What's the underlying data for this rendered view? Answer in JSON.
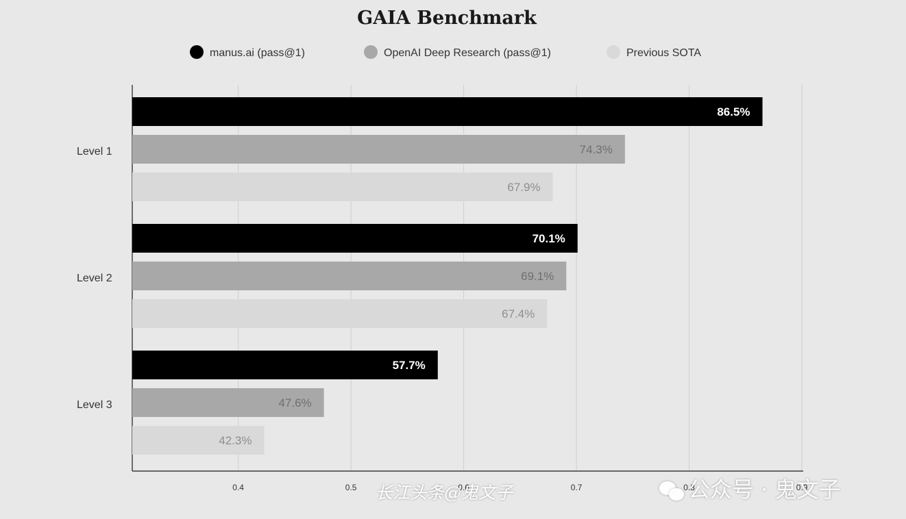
{
  "chart_data": {
    "type": "bar",
    "orientation": "horizontal",
    "title": "GAIA Benchmark",
    "categories": [
      "Level 1",
      "Level 2",
      "Level 3"
    ],
    "series": [
      {
        "name": "manus.ai (pass@1)",
        "color": "#000000",
        "label_color": "#ffffff",
        "values": [
          0.865,
          0.701,
          0.577
        ],
        "labels": [
          "86.5%",
          "70.1%",
          "57.7%"
        ]
      },
      {
        "name": "OpenAI Deep Research (pass@1)",
        "color": "#a8a8a9",
        "label_color": "#6f6f6f",
        "values": [
          0.743,
          0.691,
          0.476
        ],
        "labels": [
          "74.3%",
          "69.1%",
          "47.6%"
        ]
      },
      {
        "name": "Previous SOTA",
        "color": "#d9d9d9",
        "label_color": "#8e8e8e",
        "values": [
          0.679,
          0.674,
          0.423
        ],
        "labels": [
          "67.9%",
          "67.4%",
          "42.3%"
        ]
      }
    ],
    "xticks": [
      "0.4",
      "0.5",
      "0.6",
      "0.7",
      "0.8",
      "0.9"
    ],
    "xlim": [
      0.306,
      0.9
    ],
    "grid": true,
    "legend_position": "top"
  },
  "watermarks": {
    "left": "长江头条@鬼文子",
    "right": "公众号 · 鬼文子"
  }
}
